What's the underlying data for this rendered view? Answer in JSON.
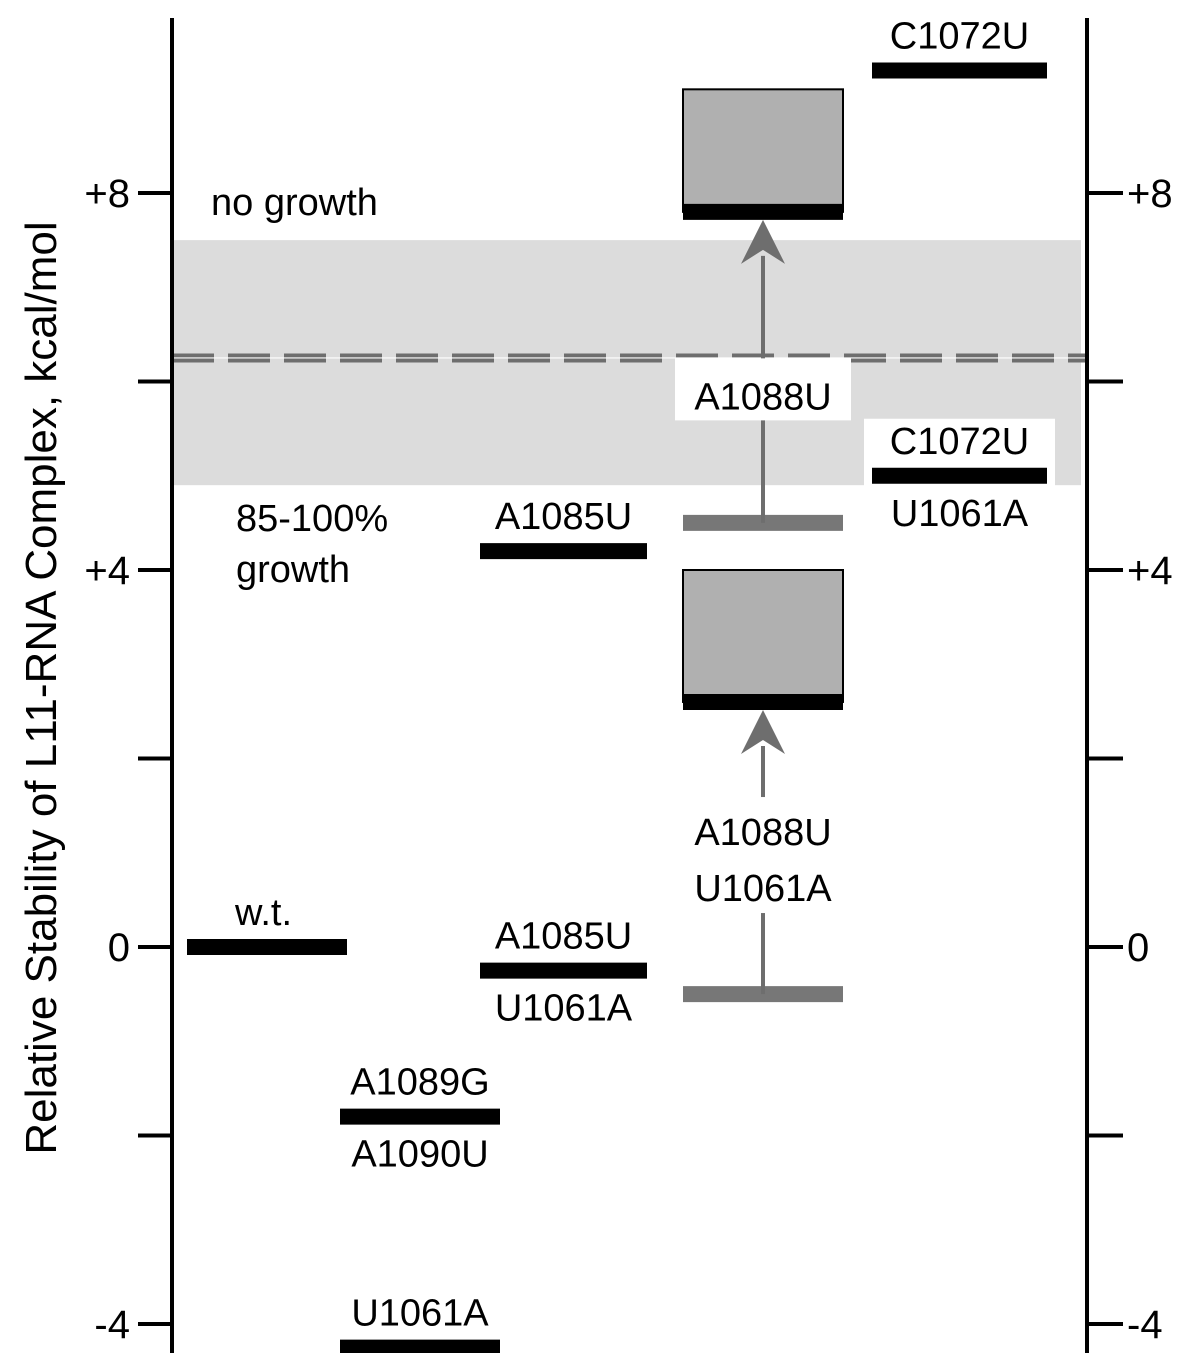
{
  "chart_data": {
    "type": "range-level-diagram",
    "ylabel": "Relative Stability of L11-RNA Complex, kcal/mol",
    "ylim": [
      -4.3,
      10
    ],
    "major_ticks": [
      {
        "value": 8,
        "label_left": "+8",
        "label_right": "+8"
      },
      {
        "value": 4,
        "label_left": "+4",
        "label_right": "+4"
      },
      {
        "value": 0,
        "label_left": "0",
        "label_right": "0"
      },
      {
        "value": -4,
        "label_left": "-4",
        "label_right": "-4"
      }
    ],
    "minor_ticks": [
      6,
      2,
      -2
    ],
    "regions": [
      {
        "name": "no growth",
        "from": 4.9,
        "to": 10
      },
      {
        "name": "85-100% growth",
        "from": -4.3,
        "to": 4.9
      }
    ],
    "region_labels": {
      "no_growth": "no growth",
      "growth_line1": "85-100%",
      "growth_line2": "growth"
    },
    "shaded_band": [
      4.9,
      7.5
    ],
    "threshold_line": 6.25,
    "mutants": [
      {
        "column": 0,
        "label": [
          "w.t."
        ],
        "value": 0.0
      },
      {
        "column": 1,
        "label": [
          "A1089G",
          "A1090U"
        ],
        "value": -1.8
      },
      {
        "column": 1,
        "label": [
          "U1061A"
        ],
        "value": -4.25
      },
      {
        "column": 2,
        "label": [
          "A1085U"
        ],
        "value": 4.2
      },
      {
        "column": 2,
        "label": [
          "A1085U",
          "U1061A"
        ],
        "value": -0.25
      },
      {
        "column": 4,
        "label": [
          "C1072U"
        ],
        "value": 9.3
      },
      {
        "column": 4,
        "label": [
          "C1072U",
          "U1061A"
        ],
        "value": 5.0
      }
    ],
    "lower_bounds": [
      {
        "column": 3,
        "label": [
          "A1088U"
        ],
        "from": 4.5,
        "to": 7.8,
        "box_top": 9.1
      },
      {
        "column": 3,
        "label": [
          "A1088U",
          "U1061A"
        ],
        "from": -0.5,
        "to": 2.6,
        "box_top": 4.0
      }
    ],
    "colors": {
      "axis": "#000000",
      "level_bar": "#000000",
      "measured_bar": "#777777",
      "arrow": "#6e6e6e",
      "box_fill": "#b0b0b0",
      "band": "#dcdcdc",
      "threshold": "#6e6e6e"
    }
  }
}
